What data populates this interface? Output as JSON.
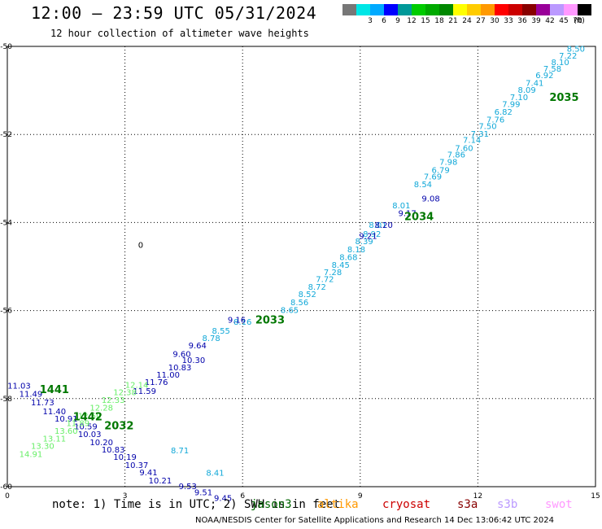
{
  "header": {
    "title": "12:00 — 23:59 UTC 05/31/2024",
    "subtitle": "12 hour collection of altimeter wave heights"
  },
  "legend": {
    "unit": "(ft)",
    "bins": [
      {
        "color": "#777777",
        "label": ""
      },
      {
        "color": "#00e6e6",
        "label": "3"
      },
      {
        "color": "#00aaff",
        "label": "6"
      },
      {
        "color": "#0000ff",
        "label": "9"
      },
      {
        "color": "#009999",
        "label": "12"
      },
      {
        "color": "#00cc00",
        "label": "15"
      },
      {
        "color": "#00aa00",
        "label": "18"
      },
      {
        "color": "#008800",
        "label": "21"
      },
      {
        "color": "#ffff00",
        "label": "24"
      },
      {
        "color": "#ffcc00",
        "label": "27"
      },
      {
        "color": "#ff9900",
        "label": "30"
      },
      {
        "color": "#ff0000",
        "label": "33"
      },
      {
        "color": "#cc0000",
        "label": "36"
      },
      {
        "color": "#880000",
        "label": "39"
      },
      {
        "color": "#990099",
        "label": "42"
      },
      {
        "color": "#bb99ff",
        "label": "45"
      },
      {
        "color": "#ff99ff",
        "label": "70"
      },
      {
        "color": "#000000",
        "label": ""
      }
    ]
  },
  "chart_data": {
    "type": "scatter",
    "title": "",
    "xlabel": "",
    "ylabel": "",
    "xlim": [
      0,
      15
    ],
    "ylim": [
      -60,
      -50
    ],
    "x_ticks": [
      "0",
      "3",
      "6",
      "9",
      "12",
      "15"
    ],
    "y_ticks": [
      "-50",
      "-52",
      "-54",
      "-56",
      "-58",
      "-60"
    ],
    "grid": true,
    "marker": "0",
    "series": [
      {
        "color": "#11a8d8",
        "points": [
          {
            "x": 14.5,
            "y": -50.05,
            "v": "8.50"
          },
          {
            "x": 14.3,
            "y": -50.2,
            "v": "7.22"
          },
          {
            "x": 14.1,
            "y": -50.35,
            "v": "8.10"
          },
          {
            "x": 13.9,
            "y": -50.5,
            "v": "7.58"
          },
          {
            "x": 13.7,
            "y": -50.65,
            "v": "6.92"
          },
          {
            "x": 13.45,
            "y": -50.82,
            "v": "7.41"
          },
          {
            "x": 13.25,
            "y": -50.98,
            "v": "8.09"
          },
          {
            "x": 13.05,
            "y": -51.15,
            "v": "7.10"
          },
          {
            "x": 12.85,
            "y": -51.3,
            "v": "7.99"
          },
          {
            "x": 12.65,
            "y": -51.48,
            "v": "6.82"
          },
          {
            "x": 12.45,
            "y": -51.65,
            "v": "7.76"
          },
          {
            "x": 12.25,
            "y": -51.8,
            "v": "7.50"
          },
          {
            "x": 12.05,
            "y": -51.98,
            "v": "7.31"
          },
          {
            "x": 11.85,
            "y": -52.12,
            "v": "7.14"
          },
          {
            "x": 11.65,
            "y": -52.3,
            "v": "7.60"
          },
          {
            "x": 11.45,
            "y": -52.45,
            "v": "7.86"
          },
          {
            "x": 11.25,
            "y": -52.62,
            "v": "7.98"
          },
          {
            "x": 11.05,
            "y": -52.8,
            "v": "6.79"
          },
          {
            "x": 10.85,
            "y": -52.95,
            "v": "7.69"
          },
          {
            "x": 10.6,
            "y": -53.12,
            "v": "8.54"
          },
          {
            "x": 10.05,
            "y": -53.6,
            "v": "8.01"
          },
          {
            "x": 9.45,
            "y": -54.05,
            "v": "8.01"
          },
          {
            "x": 9.3,
            "y": -54.25,
            "v": "8.92"
          },
          {
            "x": 9.1,
            "y": -54.42,
            "v": "8.39"
          },
          {
            "x": 8.9,
            "y": -54.6,
            "v": "8.18"
          },
          {
            "x": 8.7,
            "y": -54.78,
            "v": "8.68"
          },
          {
            "x": 8.5,
            "y": -54.95,
            "v": "8.45"
          },
          {
            "x": 8.3,
            "y": -55.12,
            "v": "7.28"
          },
          {
            "x": 8.1,
            "y": -55.28,
            "v": "7.72"
          },
          {
            "x": 7.9,
            "y": -55.45,
            "v": "8.72"
          },
          {
            "x": 7.65,
            "y": -55.62,
            "v": "8.52"
          },
          {
            "x": 7.45,
            "y": -55.8,
            "v": "8.56"
          },
          {
            "x": 7.2,
            "y": -55.98,
            "v": "8.65"
          },
          {
            "x": 6.0,
            "y": -56.25,
            "v": "8.16"
          },
          {
            "x": 5.45,
            "y": -56.45,
            "v": "8.55"
          },
          {
            "x": 5.2,
            "y": -56.62,
            "v": "8.78"
          },
          {
            "x": 4.4,
            "y": -59.17,
            "v": "8.71"
          },
          {
            "x": 5.3,
            "y": -59.68,
            "v": "8.41"
          }
        ]
      },
      {
        "color": "#0000aa",
        "points": [
          {
            "x": 10.8,
            "y": -53.45,
            "v": "9.08"
          },
          {
            "x": 10.2,
            "y": -53.78,
            "v": "9.17"
          },
          {
            "x": 9.6,
            "y": -54.05,
            "v": "8.20"
          },
          {
            "x": 9.2,
            "y": -54.3,
            "v": "9.21"
          },
          {
            "x": 5.85,
            "y": -56.2,
            "v": "9.16"
          },
          {
            "x": 4.85,
            "y": -56.78,
            "v": "9.64"
          },
          {
            "x": 4.45,
            "y": -56.98,
            "v": "9.60"
          },
          {
            "x": 4.75,
            "y": -57.12,
            "v": "10.30"
          },
          {
            "x": 4.4,
            "y": -57.28,
            "v": "10.83"
          },
          {
            "x": 4.1,
            "y": -57.45,
            "v": "11.00"
          },
          {
            "x": 3.8,
            "y": -57.62,
            "v": "11.76"
          },
          {
            "x": 3.5,
            "y": -57.82,
            "v": "11.59"
          },
          {
            "x": 0.3,
            "y": -57.7,
            "v": "11.03"
          },
          {
            "x": 0.6,
            "y": -57.88,
            "v": "11.49"
          },
          {
            "x": 0.9,
            "y": -58.08,
            "v": "11.73"
          },
          {
            "x": 1.2,
            "y": -58.28,
            "v": "11.40"
          },
          {
            "x": 1.5,
            "y": -58.45,
            "v": "10.91"
          },
          {
            "x": 2.0,
            "y": -58.62,
            "v": "10.59"
          },
          {
            "x": 2.1,
            "y": -58.8,
            "v": "10.03"
          },
          {
            "x": 2.4,
            "y": -58.98,
            "v": "10.20"
          },
          {
            "x": 2.7,
            "y": -59.15,
            "v": "10.83"
          },
          {
            "x": 3.0,
            "y": -59.32,
            "v": "10.19"
          },
          {
            "x": 3.3,
            "y": -59.5,
            "v": "10.37"
          },
          {
            "x": 3.6,
            "y": -59.67,
            "v": "9.41"
          },
          {
            "x": 3.9,
            "y": -59.85,
            "v": "10.21"
          },
          {
            "x": 4.6,
            "y": -59.98,
            "v": "9.53"
          },
          {
            "x": 5.0,
            "y": -60.12,
            "v": "9.51"
          },
          {
            "x": 5.5,
            "y": -60.25,
            "v": "9.45"
          }
        ]
      },
      {
        "color": "#66ee66",
        "points": [
          {
            "x": 3.3,
            "y": -57.68,
            "v": "12.14"
          },
          {
            "x": 3.0,
            "y": -57.85,
            "v": "12.38"
          },
          {
            "x": 2.7,
            "y": -58.02,
            "v": "12.33"
          },
          {
            "x": 2.4,
            "y": -58.2,
            "v": "12.28"
          },
          {
            "x": 2.1,
            "y": -58.38,
            "v": "12.50"
          },
          {
            "x": 1.8,
            "y": -58.55,
            "v": "11.89"
          },
          {
            "x": 1.5,
            "y": -58.72,
            "v": "13.60"
          },
          {
            "x": 1.2,
            "y": -58.9,
            "v": "13.11"
          },
          {
            "x": 0.9,
            "y": -59.07,
            "v": "13.30"
          },
          {
            "x": 0.6,
            "y": -59.25,
            "v": "14.91"
          }
        ]
      }
    ],
    "pass_labels": [
      {
        "x": 14.2,
        "y": -51.15,
        "text": "2035",
        "color": "#007700"
      },
      {
        "x": 10.5,
        "y": -53.85,
        "text": "2034",
        "color": "#007700"
      },
      {
        "x": 6.7,
        "y": -56.2,
        "text": "2033",
        "color": "#007700"
      },
      {
        "x": 2.85,
        "y": -58.6,
        "text": "2032",
        "color": "#007700"
      },
      {
        "x": 1.2,
        "y": -57.78,
        "text": "1441",
        "color": "#007700"
      },
      {
        "x": 2.05,
        "y": -58.4,
        "text": "1442",
        "color": "#007700"
      }
    ],
    "markers": [
      {
        "x": 3.4,
        "y": -54.5,
        "text": "0"
      }
    ]
  },
  "footer": {
    "note": "note:  1) Time is in UTC; 2) SWH is in feet",
    "missions": [
      {
        "name": "jason3",
        "color": "#006600"
      },
      {
        "name": "altika",
        "color": "#ff9900"
      },
      {
        "name": "cryosat",
        "color": "#cc0000"
      },
      {
        "name": "s3a",
        "color": "#880000"
      },
      {
        "name": "s3b",
        "color": "#bb99ff"
      },
      {
        "name": "swot",
        "color": "#ff99ff"
      }
    ],
    "credit": "NOAA/NESDIS Center for Satellite Applications and Research    14 Dec 13:06:42 UTC 2024"
  }
}
